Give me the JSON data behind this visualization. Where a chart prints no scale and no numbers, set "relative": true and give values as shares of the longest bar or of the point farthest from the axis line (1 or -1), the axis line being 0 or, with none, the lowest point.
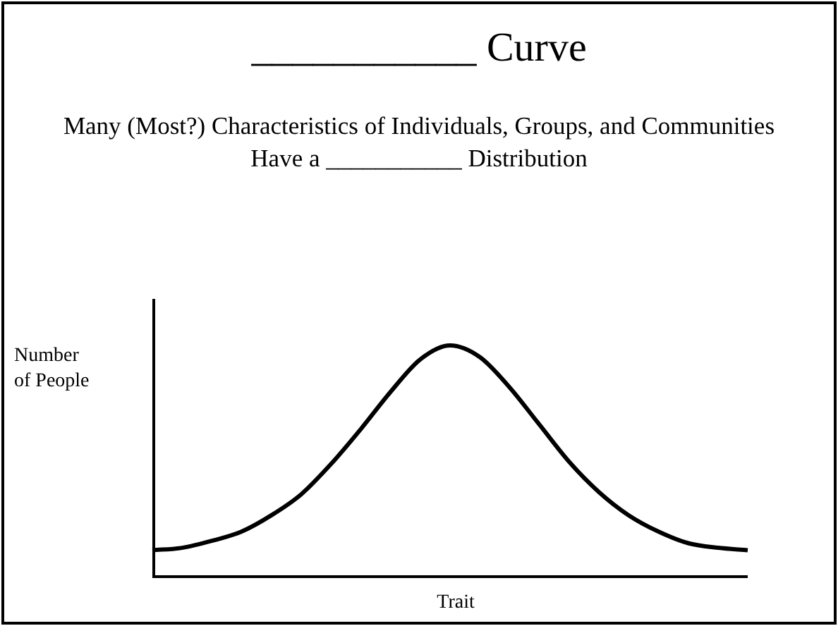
{
  "chart_data": {
    "type": "line",
    "title": "___________ Curve",
    "subtitle": "Many (Most?) Characteristics of Individuals, Groups, and Communities Have a ___________ Distribution",
    "xlabel": "Trait",
    "ylabel": "Number of People",
    "relative": true,
    "color": "#000000",
    "marker": "none",
    "legend": false,
    "grid": false,
    "categories": [
      null,
      null,
      null,
      null,
      null,
      null,
      null,
      null,
      null,
      null,
      null,
      null,
      null,
      null,
      null,
      null,
      null,
      null,
      null,
      null,
      null
    ],
    "values": [
      0.12,
      0.13,
      0.16,
      0.2,
      0.27,
      0.36,
      0.49,
      0.64,
      0.8,
      0.94,
      1,
      0.95,
      0.82,
      0.66,
      0.5,
      0.37,
      0.27,
      0.2,
      0.15,
      0.13,
      0.12
    ]
  }
}
